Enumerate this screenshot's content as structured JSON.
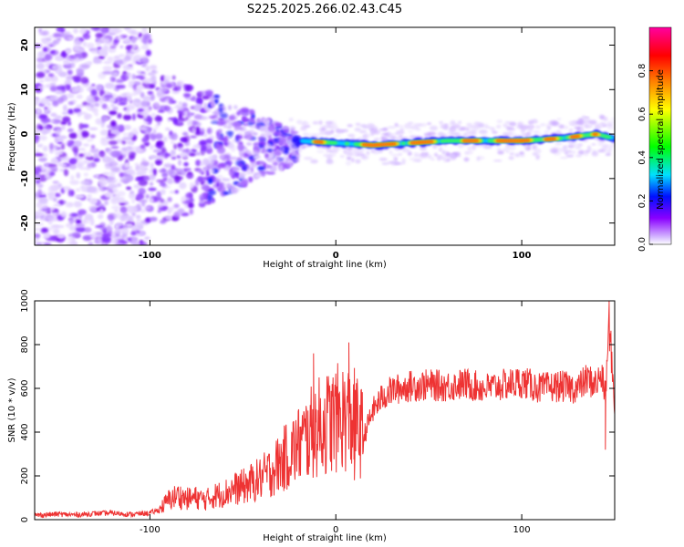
{
  "title": "S225.2025.266.02.43.C45",
  "chart_data": [
    {
      "type": "heatmap",
      "name": "spectrogram",
      "xlabel": "Height of straight line (km)",
      "ylabel": "Frequency (Hz)",
      "xlim": [
        -162,
        150
      ],
      "ylim": [
        -25,
        24
      ],
      "x_ticks": [
        -100,
        0,
        100
      ],
      "y_ticks": [
        -20,
        -10,
        0,
        10,
        20
      ],
      "colorbar": {
        "label": "Normalized spectral amplitude",
        "range": [
          0,
          1
        ],
        "ticks": [
          "0.0",
          "0.2",
          "0.4",
          "0.6",
          "0.8"
        ],
        "colors": [
          "#ffffff",
          "#8a00ff",
          "#0010ff",
          "#00e0ff",
          "#00ff00",
          "#ffff00",
          "#ff8000",
          "#ff0000",
          "#ff00a0"
        ]
      },
      "description_points": {
        "noise_region_x": [
          -162,
          -100
        ],
        "transition_region_x": [
          -100,
          -20
        ],
        "signal_line": {
          "x": [
            -20,
            0,
            20,
            40,
            60,
            80,
            100,
            120,
            140,
            150
          ],
          "freq": [
            -1.5,
            -2,
            -2.5,
            -2,
            -1.5,
            -1.5,
            -1.5,
            -1,
            0,
            -1
          ]
        }
      }
    },
    {
      "type": "line",
      "name": "snr",
      "xlabel": "Height of straight line (km)",
      "ylabel": "SNR (10 * v/v)",
      "xlim": [
        -162,
        150
      ],
      "ylim": [
        0,
        1000
      ],
      "x_ticks": [
        -100,
        0,
        100
      ],
      "y_ticks": [
        0,
        200,
        400,
        600,
        800,
        1000
      ],
      "color": "#ee3333",
      "series": {
        "x": [
          -162,
          -150,
          -140,
          -130,
          -120,
          -110,
          -100,
          -95,
          -90,
          -85,
          -80,
          -75,
          -70,
          -65,
          -60,
          -55,
          -50,
          -45,
          -40,
          -35,
          -30,
          -25,
          -20,
          -15,
          -10,
          -5,
          0,
          5,
          10,
          15,
          20,
          25,
          30,
          40,
          50,
          60,
          70,
          80,
          90,
          100,
          110,
          120,
          130,
          135,
          140,
          143,
          145,
          147,
          150
        ],
        "y": [
          20,
          25,
          22,
          28,
          30,
          24,
          30,
          45,
          90,
          110,
          95,
          100,
          90,
          110,
          120,
          140,
          150,
          170,
          190,
          220,
          260,
          300,
          340,
          380,
          420,
          440,
          460,
          470,
          450,
          380,
          500,
          560,
          590,
          610,
          615,
          610,
          620,
          600,
          615,
          630,
          600,
          610,
          600,
          640,
          620,
          660,
          560,
          900,
          520
        ]
      },
      "spikes": [
        {
          "x": 7,
          "y": 810
        },
        {
          "x": -12,
          "y": 760
        },
        {
          "x": 147,
          "y": 1000
        },
        {
          "x": 145,
          "y": 320
        },
        {
          "x": 10,
          "y": 180
        }
      ]
    }
  ]
}
